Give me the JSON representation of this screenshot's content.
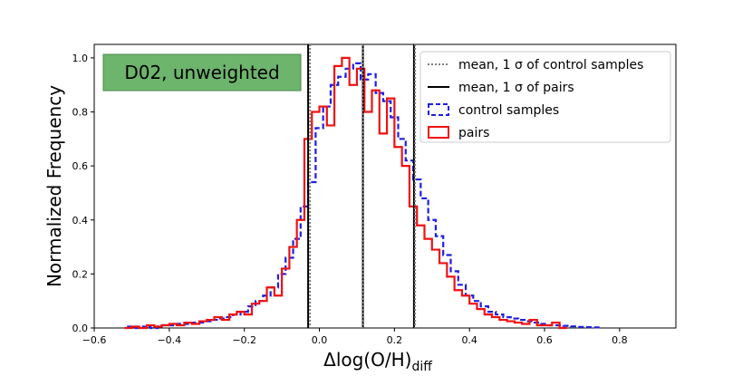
{
  "chart_data": {
    "type": "histogram-step",
    "xlabel": "Δlog(O/H)",
    "xlabel_subscript": "diff",
    "ylabel": "Normalized Frequency",
    "xlim": [
      -0.6,
      0.95
    ],
    "ylim": [
      0,
      1.05
    ],
    "xticks": [
      -0.6,
      -0.4,
      -0.2,
      0.0,
      0.2,
      0.4,
      0.6,
      0.8
    ],
    "xtick_labels": [
      "−0.6",
      "−0.4",
      "−0.2",
      "0.0",
      "0.2",
      "0.4",
      "0.6",
      "0.8"
    ],
    "yticks": [
      0.0,
      0.2,
      0.4,
      0.6,
      0.8,
      1.0
    ],
    "ytick_labels": [
      "0.0",
      "0.2",
      "0.4",
      "0.6",
      "0.8",
      "1.0"
    ],
    "annotation": {
      "text": "D02, unweighted",
      "background": "#6db46d",
      "border": "#4a8a4a"
    },
    "vlines": {
      "control": {
        "style": "dotted",
        "color": "#808080",
        "values": [
          -0.025,
          0.115,
          0.255
        ]
      },
      "pairs": {
        "style": "solid",
        "color": "#000000",
        "values": [
          -0.03,
          0.116,
          0.252
        ]
      }
    },
    "series": [
      {
        "name": "control samples",
        "color": "#1f1fdd",
        "style": "dashed",
        "bin_edges": [
          -0.51,
          -0.49,
          -0.47,
          -0.45,
          -0.43,
          -0.41,
          -0.39,
          -0.37,
          -0.35,
          -0.33,
          -0.31,
          -0.29,
          -0.27,
          -0.25,
          -0.23,
          -0.21,
          -0.19,
          -0.17,
          -0.15,
          -0.13,
          -0.11,
          -0.09,
          -0.07,
          -0.05,
          -0.03,
          -0.01,
          0.01,
          0.03,
          0.05,
          0.07,
          0.09,
          0.11,
          0.13,
          0.15,
          0.17,
          0.19,
          0.21,
          0.23,
          0.25,
          0.27,
          0.29,
          0.31,
          0.33,
          0.35,
          0.37,
          0.39,
          0.41,
          0.43,
          0.45,
          0.47,
          0.49,
          0.51,
          0.53,
          0.55,
          0.57,
          0.59,
          0.61,
          0.63,
          0.65,
          0.67,
          0.69,
          0.71,
          0.73,
          0.75
        ],
        "values": [
          0.005,
          0.0,
          0.005,
          0.0,
          0.01,
          0.01,
          0.015,
          0.015,
          0.02,
          0.02,
          0.025,
          0.03,
          0.035,
          0.04,
          0.05,
          0.06,
          0.08,
          0.1,
          0.12,
          0.15,
          0.2,
          0.26,
          0.33,
          0.45,
          0.54,
          0.74,
          0.82,
          0.9,
          0.93,
          0.96,
          0.98,
          0.92,
          0.94,
          0.87,
          0.84,
          0.78,
          0.7,
          0.62,
          0.55,
          0.48,
          0.4,
          0.34,
          0.27,
          0.21,
          0.16,
          0.12,
          0.1,
          0.08,
          0.06,
          0.05,
          0.04,
          0.035,
          0.03,
          0.025,
          0.02,
          0.015,
          0.01,
          0.01,
          0.008,
          0.006,
          0.004,
          0.003,
          0.002
        ]
      },
      {
        "name": "pairs",
        "color": "#ee1111",
        "style": "solid",
        "bin_edges": [
          -0.52,
          -0.5,
          -0.48,
          -0.46,
          -0.44,
          -0.42,
          -0.4,
          -0.38,
          -0.36,
          -0.34,
          -0.32,
          -0.3,
          -0.28,
          -0.26,
          -0.24,
          -0.22,
          -0.2,
          -0.18,
          -0.16,
          -0.14,
          -0.12,
          -0.1,
          -0.08,
          -0.06,
          -0.04,
          -0.02,
          0.0,
          0.02,
          0.04,
          0.06,
          0.08,
          0.1,
          0.12,
          0.14,
          0.16,
          0.18,
          0.2,
          0.22,
          0.24,
          0.26,
          0.28,
          0.3,
          0.32,
          0.34,
          0.36,
          0.38,
          0.4,
          0.42,
          0.44,
          0.46,
          0.48,
          0.5,
          0.52,
          0.54,
          0.56,
          0.58,
          0.6,
          0.62,
          0.64,
          0.66
        ],
        "values": [
          0.0,
          0.005,
          0.0,
          0.01,
          0.005,
          0.01,
          0.015,
          0.01,
          0.02,
          0.015,
          0.025,
          0.03,
          0.04,
          0.03,
          0.05,
          0.06,
          0.05,
          0.09,
          0.1,
          0.15,
          0.12,
          0.22,
          0.3,
          0.4,
          0.7,
          0.8,
          0.82,
          0.75,
          0.97,
          1.0,
          0.9,
          0.96,
          0.8,
          0.88,
          0.72,
          0.85,
          0.67,
          0.6,
          0.45,
          0.38,
          0.33,
          0.29,
          0.24,
          0.19,
          0.14,
          0.12,
          0.09,
          0.07,
          0.05,
          0.04,
          0.03,
          0.025,
          0.02,
          0.015,
          0.03,
          0.01,
          0.01,
          0.02,
          0.0
        ]
      }
    ],
    "legend": {
      "placement": "upper-right",
      "entries": [
        {
          "label": "mean, 1 σ of control samples",
          "type": "dotted-line",
          "color": "#808080"
        },
        {
          "label": "mean, 1 σ of pairs",
          "type": "solid-line",
          "color": "#000000"
        },
        {
          "label": "control samples",
          "type": "dashed-box",
          "color": "#1f1fdd"
        },
        {
          "label": "pairs",
          "type": "solid-box",
          "color": "#ee1111"
        }
      ]
    }
  }
}
